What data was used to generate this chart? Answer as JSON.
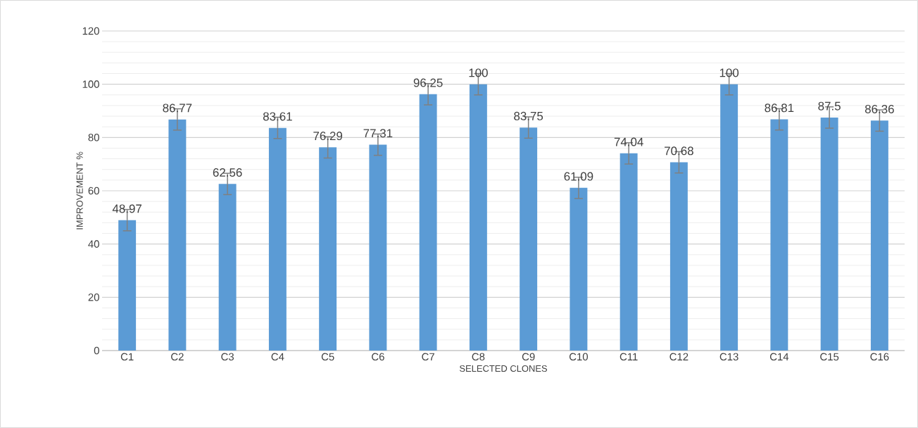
{
  "chart_data": {
    "type": "bar",
    "xlabel": "SELECTED CLONES",
    "ylabel": "IMPROVEMENT %",
    "categories": [
      "C1",
      "C2",
      "C3",
      "C4",
      "C5",
      "C6",
      "C7",
      "C8",
      "C9",
      "C10",
      "C11",
      "C12",
      "C13",
      "C14",
      "C15",
      "C16"
    ],
    "values": [
      48.97,
      86.77,
      62.56,
      83.61,
      76.29,
      77.31,
      96.25,
      100,
      83.75,
      61.09,
      74.04,
      70.68,
      100,
      86.81,
      87.5,
      86.36
    ],
    "errors": [
      4,
      4,
      4,
      4,
      4,
      4,
      4,
      4,
      4,
      4,
      4,
      4,
      4,
      4,
      4,
      4
    ],
    "color": "#5b9bd5",
    "ylim": [
      0,
      120
    ],
    "yticks": [
      0,
      20,
      40,
      60,
      80,
      100,
      120
    ],
    "grid": "y",
    "data_labels": true
  }
}
